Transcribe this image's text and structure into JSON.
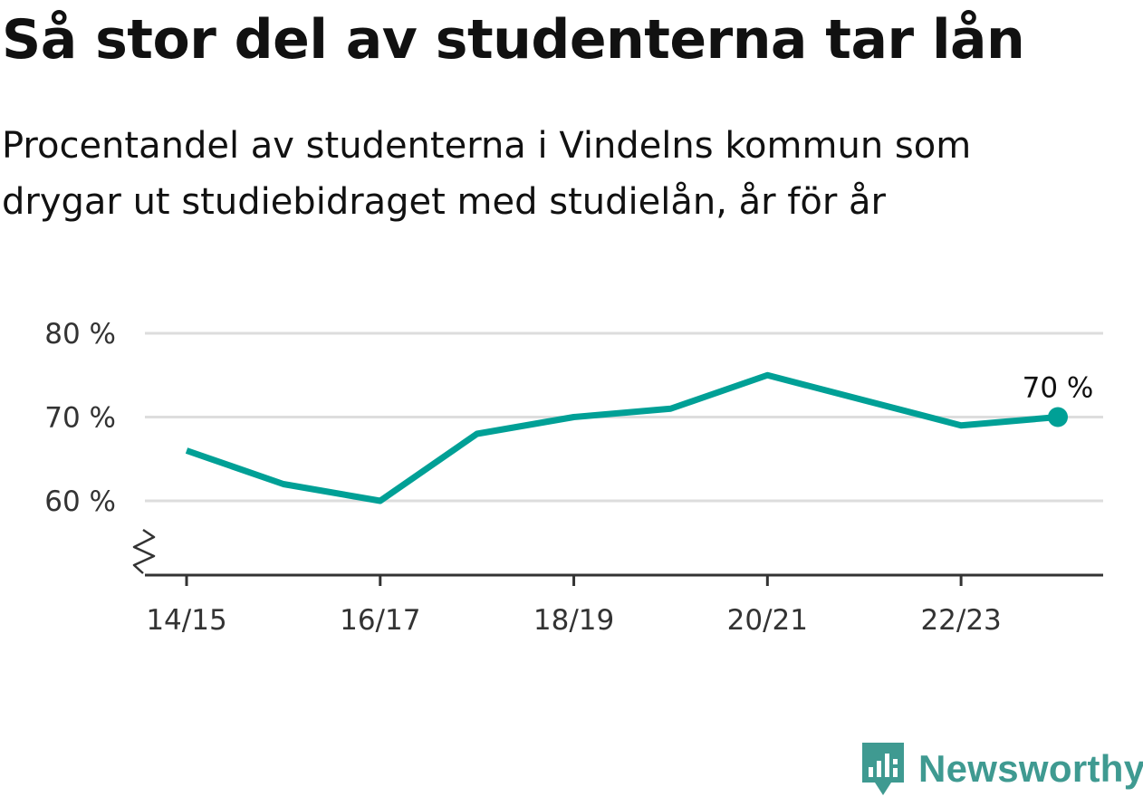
{
  "header": {
    "title": "Så stor del av studenterna tar lån",
    "subtitle": "Procentandel av studenterna i Vindelns kommun som drygar ut studiebidraget med studielån, år för år"
  },
  "chart_data": {
    "type": "line",
    "title": "Så stor del av studenterna tar lån",
    "subtitle": "Procentandel av studenterna i Vindelns kommun som drygar ut studiebidraget med studielån, år för år",
    "xlabel": "",
    "ylabel": "",
    "x": [
      "14/15",
      "15/16",
      "16/17",
      "17/18",
      "18/19",
      "19/20",
      "20/21",
      "21/22",
      "22/23",
      "23/24"
    ],
    "x_tick_labels": [
      "14/15",
      "",
      "16/17",
      "",
      "18/19",
      "",
      "20/21",
      "",
      "22/23",
      ""
    ],
    "series": [
      {
        "values": [
          66,
          62,
          60,
          68,
          70,
          71,
          75,
          72,
          69,
          70
        ],
        "color": "#00a096"
      }
    ],
    "y_ticks": [
      60,
      70,
      80
    ],
    "y_tick_labels": [
      "60 %",
      "70 %",
      "80 %"
    ],
    "ylim": [
      51,
      80
    ],
    "axis_break": true,
    "grid": true,
    "legend": "none",
    "end_label": "70 %"
  },
  "brand": {
    "name": "Newsworthy",
    "icon": "newsworthy-logo-icon",
    "color": "#3f9a91"
  }
}
